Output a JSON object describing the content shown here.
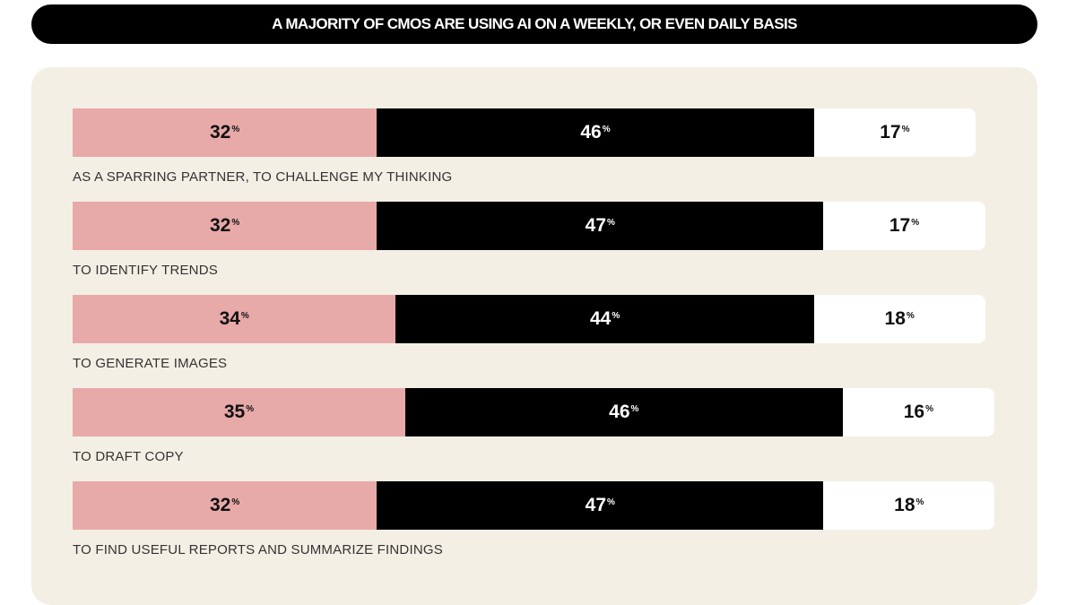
{
  "chart_data": {
    "type": "bar",
    "orientation": "horizontal-stacked",
    "title": "A MAJORITY OF CMOS ARE USING AI ON A WEEKLY, OR EVEN DAILY BASIS",
    "unit": "%",
    "colors": [
      "#e8a9a9",
      "#000000",
      "#ffffff"
    ],
    "categories": [
      "AS A SPARRING PARTNER, TO CHALLENGE MY THINKING",
      "TO IDENTIFY TRENDS",
      "TO GENERATE IMAGES",
      "TO DRAFT COPY",
      "TO FIND USEFUL REPORTS AND SUMMARIZE FINDINGS"
    ],
    "series": [
      {
        "values": [
          32,
          32,
          34,
          35,
          32
        ]
      },
      {
        "values": [
          46,
          47,
          44,
          46,
          47
        ]
      },
      {
        "values": [
          17,
          17,
          18,
          16,
          18
        ]
      }
    ]
  }
}
